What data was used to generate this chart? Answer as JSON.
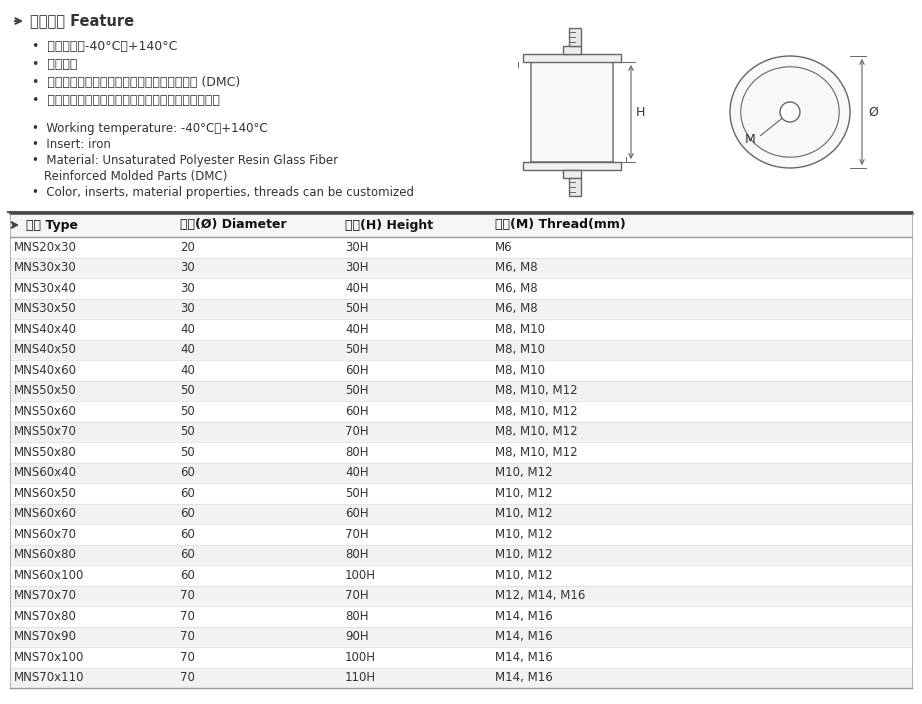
{
  "title_cn": "产品特性 Feature",
  "features_cn": [
    "工作温度：-40°C～+140°C",
    "嵌件：铁",
    "材料：不饱和聚酯树脂玻璃纤维增强模压塑件 (DMC)",
    "颜色、嵌件、材料性能、螺纹可依据客户要求定制。"
  ],
  "features_en": [
    "Working temperature: -40°C～+140°C",
    "Insert: iron",
    "Material: Unsaturated Polyester Resin Glass Fiber",
    "    Reinforced Molded Parts (DMC)",
    "Color, inserts, material properties, threads can be customized"
  ],
  "table_headers": [
    "型号 Type",
    "直径(Ø) Diameter",
    "高度(H) Height",
    "螺纹(M) Thread(mm)"
  ],
  "table_data": [
    [
      "MNS20x30",
      "20",
      "30H",
      "M6"
    ],
    [
      "MNS30x30",
      "30",
      "30H",
      "M6, M8"
    ],
    [
      "MNS30x40",
      "30",
      "40H",
      "M6, M8"
    ],
    [
      "MNS30x50",
      "30",
      "50H",
      "M6, M8"
    ],
    [
      "MNS40x40",
      "40",
      "40H",
      "M8, M10"
    ],
    [
      "MNS40x50",
      "40",
      "50H",
      "M8, M10"
    ],
    [
      "MNS40x60",
      "40",
      "60H",
      "M8, M10"
    ],
    [
      "MNS50x50",
      "50",
      "50H",
      "M8, M10, M12"
    ],
    [
      "MNS50x60",
      "50",
      "60H",
      "M8, M10, M12"
    ],
    [
      "MNS50x70",
      "50",
      "70H",
      "M8, M10, M12"
    ],
    [
      "MNS50x80",
      "50",
      "80H",
      "M8, M10, M12"
    ],
    [
      "MNS60x40",
      "60",
      "40H",
      "M10, M12"
    ],
    [
      "MNS60x50",
      "60",
      "50H",
      "M10, M12"
    ],
    [
      "MNS60x60",
      "60",
      "60H",
      "M10, M12"
    ],
    [
      "MNS60x70",
      "60",
      "70H",
      "M10, M12"
    ],
    [
      "MNS60x80",
      "60",
      "80H",
      "M10, M12"
    ],
    [
      "MNS60x100",
      "60",
      "100H",
      "M10, M12"
    ],
    [
      "MNS70x70",
      "70",
      "70H",
      "M12, M14, M16"
    ],
    [
      "MNS70x80",
      "70",
      "80H",
      "M14, M16"
    ],
    [
      "MNS70x90",
      "70",
      "90H",
      "M14, M16"
    ],
    [
      "MNS70x100",
      "70",
      "100H",
      "M14, M16"
    ],
    [
      "MNS70x110",
      "70",
      "110H",
      "M14, M16"
    ]
  ],
  "row_color_odd": "#ffffff",
  "row_color_even": "#f2f2f2",
  "text_color": "#333333",
  "arrow_color": "#444444",
  "line_color": "#888888",
  "draw_color": "#666666"
}
